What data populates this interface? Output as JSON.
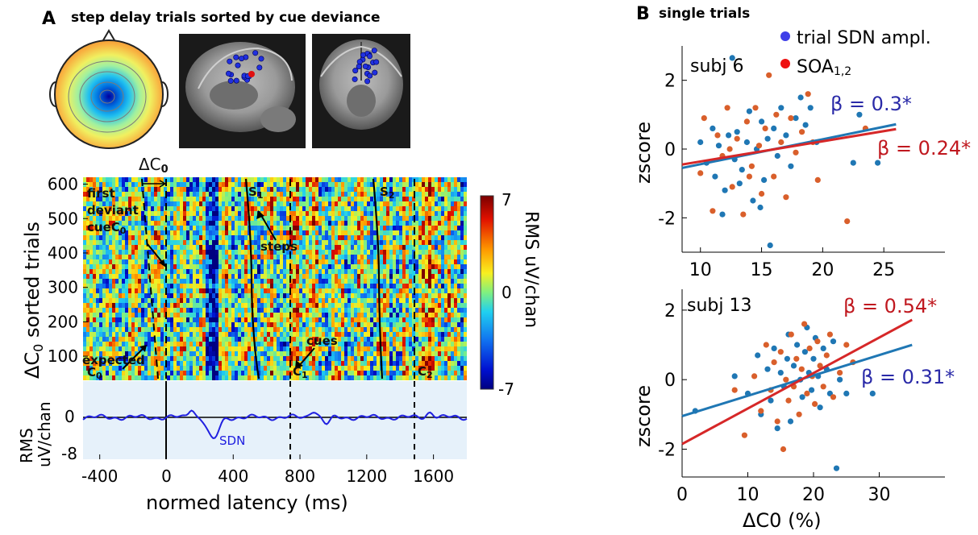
{
  "panel_a": {
    "letter": "A",
    "title": "step delay trials sorted by cue deviance",
    "delta_c0_label": "ΔC",
    "delta_c0_sub": "0",
    "ylabel_main": "ΔC",
    "ylabel_main_sub": "0",
    "ylabel_main_rest": " sorted trials",
    "colorbar_label": "RMS uV/chan",
    "colorbar_ticks": [
      "7",
      "0",
      "-7"
    ],
    "ann_first": "first",
    "ann_deviant": "deviant",
    "ann_cue": "cue",
    "ann_cue_sub": "C",
    "ann_cue_sub2": "0",
    "ann_expected": "expected",
    "ann_expected_c": "C",
    "ann_expected_sub": "0",
    "ann_steps": "steps",
    "ann_cues": "cues",
    "ann_s1": "S",
    "ann_s1_sub": "1",
    "ann_s2": "S",
    "ann_s2_sub": "2",
    "ann_c1": "C",
    "ann_c1_sub": "1",
    "ann_c2": "C",
    "ann_c2_sub": "2",
    "rms_ylabel_1": "RMS",
    "rms_ylabel_2": "uV/chan",
    "rms_ticks": [
      "0",
      "-8"
    ],
    "sdn_label": "SDN",
    "xlabel": "normed latency (ms)",
    "xticks": [
      "-400",
      "0",
      "400",
      "800",
      "1200",
      "1600"
    ],
    "yticks": [
      "600",
      "500",
      "400",
      "300",
      "200",
      "100"
    ]
  },
  "panel_b": {
    "letter": "B",
    "title": "single trials",
    "legend_trial": "trial SDN ampl.",
    "legend_soa": "SOA",
    "legend_soa_sub": "1,2",
    "ylabel": "zscore",
    "xlabel": "ΔC0 (%)",
    "colors": {
      "blue": "#1f77b4",
      "orange": "#d95f2b",
      "red": "#d62728",
      "blue_text": "#2a2aa8",
      "red_text": "#c0181f"
    }
  },
  "chart_data": [
    {
      "type": "heatmap",
      "title": "step delay trials sorted by cue deviance",
      "xlabel": "normed latency (ms)",
      "ylabel": "ΔC0 sorted trials",
      "xlim": [
        -500,
        1800
      ],
      "ylim": [
        30,
        620
      ],
      "colorbar": {
        "label": "RMS uV/chan",
        "range": [
          -7,
          7
        ]
      }
    },
    {
      "type": "line",
      "series": [
        {
          "name": "SDN"
        }
      ],
      "ylabel": "RMS uV/chan",
      "yticks": [
        0,
        -8
      ],
      "xlim": [
        -500,
        1800
      ]
    },
    {
      "type": "scatter",
      "title": "subj 6",
      "xlabel": "",
      "ylabel": "zscore",
      "xlim": [
        8.5,
        30
      ],
      "ylim": [
        -3,
        3
      ],
      "xticks": [
        10,
        15,
        20,
        25
      ],
      "yticks": [
        2,
        0,
        -2
      ],
      "series": [
        {
          "name": "trial SDN ampl.",
          "slope_label": "β = 0.3*",
          "fit": [
            [
              8.5,
              -0.55
            ],
            [
              26,
              0.72
            ]
          ],
          "points": [
            [
              10,
              0.2
            ],
            [
              10.5,
              -0.4
            ],
            [
              11,
              0.6
            ],
            [
              11.2,
              -0.8
            ],
            [
              11.5,
              0.1
            ],
            [
              12,
              -1.2
            ],
            [
              12.3,
              0.4
            ],
            [
              12.6,
              2.65
            ],
            [
              12.8,
              -0.3
            ],
            [
              13,
              0.5
            ],
            [
              13.4,
              -0.6
            ],
            [
              13.8,
              0.2
            ],
            [
              14,
              1.1
            ],
            [
              14.3,
              -1.5
            ],
            [
              14.6,
              0.0
            ],
            [
              15,
              0.8
            ],
            [
              15.2,
              -0.9
            ],
            [
              15.5,
              0.3
            ],
            [
              15.7,
              -2.8
            ],
            [
              16,
              0.6
            ],
            [
              16.3,
              -0.2
            ],
            [
              16.6,
              1.2
            ],
            [
              17,
              0.4
            ],
            [
              17.4,
              -0.5
            ],
            [
              17.8,
              0.9
            ],
            [
              18.2,
              1.5
            ],
            [
              18.6,
              0.7
            ],
            [
              19,
              1.2
            ],
            [
              19.5,
              0.2
            ],
            [
              22.5,
              -0.4
            ],
            [
              23,
              1.0
            ],
            [
              24.5,
              -0.4
            ],
            [
              11.8,
              -1.9
            ],
            [
              13.2,
              -1.0
            ],
            [
              14.9,
              -1.7
            ]
          ]
        },
        {
          "name": "SOA1,2",
          "slope_label": "β = 0.24*",
          "fit": [
            [
              8.5,
              -0.45
            ],
            [
              26,
              0.58
            ]
          ],
          "points": [
            [
              10,
              -0.7
            ],
            [
              10.3,
              0.9
            ],
            [
              11,
              -1.8
            ],
            [
              11.4,
              0.4
            ],
            [
              11.8,
              -0.2
            ],
            [
              12.2,
              1.2
            ],
            [
              12.6,
              -1.1
            ],
            [
              13,
              0.3
            ],
            [
              13.5,
              -1.9
            ],
            [
              13.8,
              0.8
            ],
            [
              14.2,
              -0.5
            ],
            [
              14.5,
              1.2
            ],
            [
              14.8,
              0.1
            ],
            [
              15,
              -1.3
            ],
            [
              15.3,
              0.6
            ],
            [
              15.6,
              2.15
            ],
            [
              16,
              -0.8
            ],
            [
              16.2,
              1.0
            ],
            [
              16.6,
              0.2
            ],
            [
              17,
              -1.4
            ],
            [
              17.4,
              0.9
            ],
            [
              17.8,
              -0.1
            ],
            [
              18.3,
              0.5
            ],
            [
              18.8,
              1.6
            ],
            [
              19.2,
              0.2
            ],
            [
              19.6,
              -0.9
            ],
            [
              22,
              -2.1
            ],
            [
              23.5,
              0.6
            ],
            [
              12.4,
              0.0
            ],
            [
              14.0,
              -0.8
            ]
          ]
        }
      ]
    },
    {
      "type": "scatter",
      "title": "subj 13",
      "xlabel": "ΔC0 (%)",
      "ylabel": "zscore",
      "xlim": [
        0,
        40
      ],
      "ylim": [
        -2.8,
        2.6
      ],
      "xticks": [
        0,
        10,
        20,
        30
      ],
      "yticks": [
        2,
        0,
        -2
      ],
      "series": [
        {
          "name": "trial SDN ampl.",
          "slope_label": "β = 0.31*",
          "fit": [
            [
              0,
              -1.05
            ],
            [
              35,
              1.0
            ]
          ],
          "points": [
            [
              2,
              -0.9
            ],
            [
              8,
              0.1
            ],
            [
              10,
              -0.4
            ],
            [
              11.5,
              0.7
            ],
            [
              12,
              -1.0
            ],
            [
              13,
              0.3
            ],
            [
              13.5,
              -0.6
            ],
            [
              14,
              0.9
            ],
            [
              14.5,
              -1.4
            ],
            [
              15,
              0.2
            ],
            [
              15.5,
              -0.2
            ],
            [
              16,
              0.6
            ],
            [
              16.5,
              -1.2
            ],
            [
              17,
              0.4
            ],
            [
              17.5,
              1.0
            ],
            [
              18,
              0.0
            ],
            [
              18.3,
              -0.5
            ],
            [
              18.7,
              0.8
            ],
            [
              19,
              1.5
            ],
            [
              19.3,
              0.2
            ],
            [
              19.7,
              -0.3
            ],
            [
              20,
              0.6
            ],
            [
              20.3,
              1.2
            ],
            [
              20.7,
              0.1
            ],
            [
              21,
              -0.8
            ],
            [
              21.5,
              0.9
            ],
            [
              22,
              0.3
            ],
            [
              22.5,
              -0.4
            ],
            [
              23,
              1.1
            ],
            [
              24,
              0.0
            ],
            [
              25,
              -0.4
            ],
            [
              29,
              -0.4
            ],
            [
              23.5,
              -2.55
            ],
            [
              16.2,
              1.3
            ]
          ]
        },
        {
          "name": "SOA1,2",
          "slope_label": "β = 0.54*",
          "fit": [
            [
              0,
              -1.85
            ],
            [
              35,
              1.72
            ]
          ],
          "points": [
            [
              8,
              -0.3
            ],
            [
              9.5,
              -1.6
            ],
            [
              11,
              0.1
            ],
            [
              12,
              -0.9
            ],
            [
              12.8,
              1.0
            ],
            [
              13.5,
              -0.3
            ],
            [
              14,
              0.5
            ],
            [
              14.5,
              -1.2
            ],
            [
              15,
              0.8
            ],
            [
              15.4,
              -2.0
            ],
            [
              15.8,
              0.0
            ],
            [
              16.2,
              -0.6
            ],
            [
              16.6,
              1.3
            ],
            [
              17,
              -0.2
            ],
            [
              17.4,
              0.6
            ],
            [
              17.8,
              -1.0
            ],
            [
              18.2,
              0.3
            ],
            [
              18.6,
              1.6
            ],
            [
              19,
              -0.4
            ],
            [
              19.4,
              0.9
            ],
            [
              19.8,
              0.1
            ],
            [
              20.2,
              -0.7
            ],
            [
              20.6,
              1.1
            ],
            [
              21,
              0.4
            ],
            [
              21.5,
              -0.2
            ],
            [
              22,
              0.7
            ],
            [
              22.5,
              1.3
            ],
            [
              23,
              -0.5
            ],
            [
              24,
              0.2
            ],
            [
              25,
              1.0
            ],
            [
              26,
              0.5
            ]
          ]
        }
      ]
    }
  ]
}
